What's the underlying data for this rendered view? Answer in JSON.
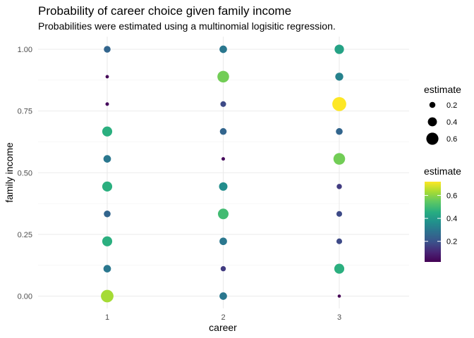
{
  "chart_data": {
    "type": "scatter",
    "title": "Probability of career choice given family income",
    "subtitle": "Probabilities were estimated using a multinomial logisitic regression.",
    "xlabel": "career",
    "ylabel": "family income",
    "x_categories": [
      "1",
      "2",
      "3"
    ],
    "y_ticks": [
      "0.00",
      "0.25",
      "0.50",
      "0.75",
      "1.00"
    ],
    "ylim": [
      -0.05,
      1.05
    ],
    "grid": true,
    "color_scale": "viridis",
    "estimate_range": [
      0.02,
      0.72
    ],
    "points": [
      {
        "career": 1,
        "income": 0.0,
        "estimate": 0.63
      },
      {
        "career": 1,
        "income": 0.111,
        "estimate": 0.3
      },
      {
        "career": 1,
        "income": 0.222,
        "estimate": 0.46
      },
      {
        "career": 1,
        "income": 0.333,
        "estimate": 0.25
      },
      {
        "career": 1,
        "income": 0.444,
        "estimate": 0.46
      },
      {
        "career": 1,
        "income": 0.556,
        "estimate": 0.3
      },
      {
        "career": 1,
        "income": 0.667,
        "estimate": 0.46
      },
      {
        "career": 1,
        "income": 0.778,
        "estimate": 0.04
      },
      {
        "career": 1,
        "income": 0.889,
        "estimate": 0.03
      },
      {
        "career": 1,
        "income": 1.0,
        "estimate": 0.25
      },
      {
        "career": 2,
        "income": 0.0,
        "estimate": 0.3
      },
      {
        "career": 2,
        "income": 0.111,
        "estimate": 0.15
      },
      {
        "career": 2,
        "income": 0.222,
        "estimate": 0.3
      },
      {
        "career": 2,
        "income": 0.333,
        "estimate": 0.5
      },
      {
        "career": 2,
        "income": 0.444,
        "estimate": 0.36
      },
      {
        "career": 2,
        "income": 0.556,
        "estimate": 0.04
      },
      {
        "career": 2,
        "income": 0.667,
        "estimate": 0.25
      },
      {
        "career": 2,
        "income": 0.778,
        "estimate": 0.18
      },
      {
        "career": 2,
        "income": 0.889,
        "estimate": 0.57
      },
      {
        "career": 2,
        "income": 1.0,
        "estimate": 0.3
      },
      {
        "career": 3,
        "income": 0.0,
        "estimate": 0.02
      },
      {
        "career": 3,
        "income": 0.111,
        "estimate": 0.46
      },
      {
        "career": 3,
        "income": 0.222,
        "estimate": 0.18
      },
      {
        "career": 3,
        "income": 0.333,
        "estimate": 0.18
      },
      {
        "career": 3,
        "income": 0.444,
        "estimate": 0.15
      },
      {
        "career": 3,
        "income": 0.556,
        "estimate": 0.57
      },
      {
        "career": 3,
        "income": 0.667,
        "estimate": 0.25
      },
      {
        "career": 3,
        "income": 0.778,
        "estimate": 0.72
      },
      {
        "career": 3,
        "income": 0.889,
        "estimate": 0.33
      },
      {
        "career": 3,
        "income": 1.0,
        "estimate": 0.42
      }
    ],
    "legend": {
      "placement": "right",
      "size_title": "estimate",
      "size_entries": [
        {
          "label": "0.2",
          "value": 0.2
        },
        {
          "label": "0.4",
          "value": 0.4
        },
        {
          "label": "0.6",
          "value": 0.6
        }
      ],
      "color_title": "estimate",
      "color_ticks": [
        {
          "label": "0.2",
          "value": 0.2
        },
        {
          "label": "0.4",
          "value": 0.4
        },
        {
          "label": "0.6",
          "value": 0.6
        }
      ]
    }
  }
}
